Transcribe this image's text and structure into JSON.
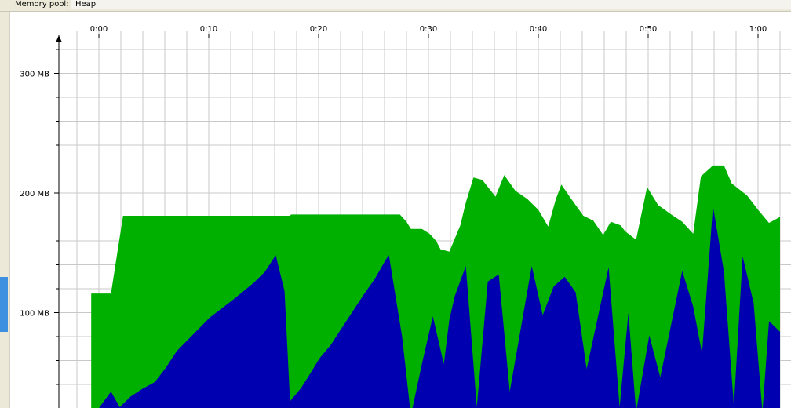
{
  "toolbar": {
    "label": "Memory pool:",
    "selected": "Heap"
  },
  "colors": {
    "committed": "#00b000",
    "used": "#0000b0",
    "grid": "#c8c8c8",
    "axis": "#000000"
  },
  "chart_data": {
    "type": "area",
    "title": "",
    "xlabel": "",
    "ylabel": "",
    "x_unit": "seconds",
    "y_unit": "MB",
    "xlim": [
      0,
      61
    ],
    "ylim": [
      0,
      330
    ],
    "x_ticks": [
      {
        "value": 0,
        "label": "0:00"
      },
      {
        "value": 10,
        "label": "0:10"
      },
      {
        "value": 20,
        "label": "0:20"
      },
      {
        "value": 30,
        "label": "0:30"
      },
      {
        "value": 40,
        "label": "0:40"
      },
      {
        "value": 50,
        "label": "0:50"
      },
      {
        "value": 60,
        "label": "1:00"
      }
    ],
    "y_ticks": [
      {
        "value": 100,
        "label": "100 MB"
      },
      {
        "value": 200,
        "label": "200 MB"
      },
      {
        "value": 300,
        "label": "300 MB"
      }
    ],
    "grid": true,
    "series": [
      {
        "key": "committed",
        "points": [
          [
            -0.7,
            116
          ],
          [
            1.1,
            116
          ],
          [
            2.2,
            181
          ],
          [
            17.4,
            181
          ],
          [
            17.5,
            182
          ],
          [
            27.4,
            182
          ],
          [
            28.0,
            176
          ],
          [
            28.4,
            170
          ],
          [
            29.4,
            170
          ],
          [
            30.1,
            166
          ],
          [
            30.7,
            160
          ],
          [
            31.1,
            153
          ],
          [
            31.9,
            151
          ],
          [
            32.9,
            173
          ],
          [
            33.4,
            192
          ],
          [
            34.1,
            213
          ],
          [
            34.9,
            211
          ],
          [
            36.1,
            197
          ],
          [
            36.9,
            215
          ],
          [
            37.9,
            202
          ],
          [
            39.0,
            195
          ],
          [
            40.0,
            186
          ],
          [
            40.9,
            172
          ],
          [
            41.6,
            195
          ],
          [
            42.1,
            207
          ],
          [
            43.0,
            195
          ],
          [
            44.1,
            181
          ],
          [
            45.0,
            177
          ],
          [
            45.9,
            165
          ],
          [
            46.6,
            176
          ],
          [
            47.5,
            173
          ],
          [
            47.9,
            168
          ],
          [
            48.9,
            161
          ],
          [
            49.9,
            205
          ],
          [
            50.9,
            190
          ],
          [
            52.1,
            182
          ],
          [
            53.1,
            176
          ],
          [
            54.1,
            166
          ],
          [
            54.8,
            214
          ],
          [
            55.9,
            223
          ],
          [
            56.9,
            223
          ],
          [
            57.6,
            208
          ],
          [
            59.0,
            198
          ],
          [
            60.0,
            186
          ],
          [
            61.0,
            175
          ],
          [
            62.0,
            180
          ]
        ]
      },
      {
        "key": "used",
        "points": [
          [
            -0.7,
            11
          ],
          [
            0.3,
            24
          ],
          [
            1.1,
            34
          ],
          [
            1.9,
            21
          ],
          [
            2.9,
            30
          ],
          [
            3.9,
            36
          ],
          [
            5.1,
            42
          ],
          [
            6.1,
            54
          ],
          [
            7.1,
            68
          ],
          [
            10.1,
            96
          ],
          [
            12.1,
            110
          ],
          [
            14.1,
            125
          ],
          [
            15.1,
            134
          ],
          [
            16.1,
            148
          ],
          [
            16.9,
            118
          ],
          [
            17.4,
            26
          ],
          [
            18.4,
            37
          ],
          [
            19.1,
            47
          ],
          [
            20.1,
            62
          ],
          [
            21.1,
            73
          ],
          [
            22.1,
            87
          ],
          [
            23.1,
            101
          ],
          [
            24.1,
            115
          ],
          [
            25.1,
            128
          ],
          [
            26.1,
            144
          ],
          [
            26.4,
            148
          ],
          [
            27.6,
            80
          ],
          [
            28.4,
            14
          ],
          [
            29.4,
            57
          ],
          [
            30.4,
            97
          ],
          [
            31.4,
            57
          ],
          [
            31.9,
            94
          ],
          [
            32.4,
            114
          ],
          [
            33.4,
            139
          ],
          [
            34.4,
            21
          ],
          [
            35.4,
            126
          ],
          [
            36.4,
            132
          ],
          [
            37.4,
            34
          ],
          [
            39.4,
            139
          ],
          [
            40.4,
            98
          ],
          [
            41.4,
            122
          ],
          [
            42.4,
            130
          ],
          [
            43.4,
            117
          ],
          [
            44.4,
            53
          ],
          [
            46.4,
            138
          ],
          [
            47.4,
            21
          ],
          [
            48.2,
            100
          ],
          [
            48.9,
            17
          ],
          [
            50.1,
            81
          ],
          [
            51.1,
            46
          ],
          [
            53.1,
            135
          ],
          [
            54.1,
            105
          ],
          [
            54.9,
            66
          ],
          [
            55.9,
            189
          ],
          [
            56.9,
            134
          ],
          [
            57.8,
            22
          ],
          [
            58.6,
            147
          ],
          [
            59.6,
            108
          ],
          [
            60.4,
            17
          ],
          [
            61.0,
            93
          ],
          [
            62.0,
            84
          ]
        ]
      }
    ]
  }
}
